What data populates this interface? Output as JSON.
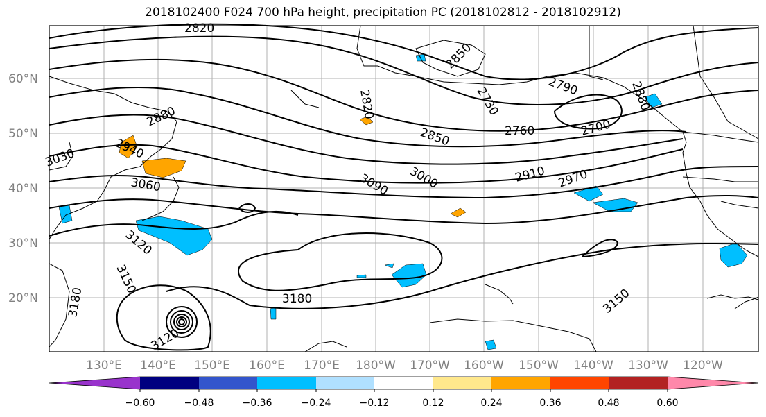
{
  "title": "2018102400 F024 700 hPa height, precipitation PC (2018102812 - 2018102912)",
  "map": {
    "lat_labels": [
      "60°N",
      "50°N",
      "40°N",
      "30°N",
      "20°N"
    ],
    "lon_labels": [
      "130°E",
      "140°E",
      "150°E",
      "160°E",
      "170°E",
      "180°W",
      "170°W",
      "160°W",
      "150°W",
      "140°W",
      "130°W",
      "120°W"
    ],
    "contour_labels": [
      "2820",
      "2760",
      "2790",
      "2700",
      "2850",
      "2730",
      "2880",
      "3000",
      "2910",
      "2970",
      "3090",
      "3030",
      "3060",
      "3120",
      "3150",
      "3180",
      "2820",
      "2880",
      "2940",
      "3150",
      "3180",
      "3120",
      "2850"
    ],
    "gridlines": true
  },
  "colorbar": {
    "ticks": [
      "−0.60",
      "−0.48",
      "−0.36",
      "−0.24",
      "−0.12",
      "0.12",
      "0.24",
      "0.36",
      "0.48",
      "0.60"
    ],
    "colors": [
      "#9933cc",
      "#000080",
      "#3355cc",
      "#00bfff",
      "#b0e0ff",
      "#ffffff",
      "#ffe88c",
      "#ffa500",
      "#ff4500",
      "#b22222",
      "#ff88aa"
    ],
    "extend": "both"
  },
  "colors": {
    "negative_shade": "#00bfff",
    "light_negative_shade": "#b0e0ff",
    "positive_shade": "#ffa500",
    "grid": "#b0b0b0",
    "axis_label": "#808080"
  }
}
